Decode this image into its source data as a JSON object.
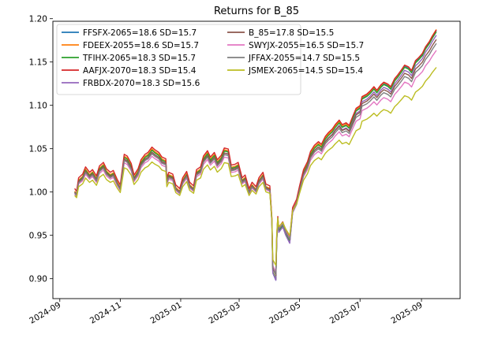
{
  "chart_data": {
    "type": "line",
    "title": "Returns for B_85",
    "xlabel": "",
    "ylabel": "",
    "x_range": [
      "2024-08-25",
      "2025-10-10"
    ],
    "ylim": [
      0.877,
      1.197
    ],
    "x_tick_labels": [
      "2024-09",
      "2024-11",
      "2025-01",
      "2025-03",
      "2025-05",
      "2025-07",
      "2025-09"
    ],
    "x_tick_dates": [
      "2024-09-01",
      "2024-11-01",
      "2025-01-01",
      "2025-03-01",
      "2025-05-01",
      "2025-07-01",
      "2025-09-01"
    ],
    "y_ticks": [
      0.9,
      0.95,
      1.0,
      1.05,
      1.1,
      1.15,
      1.2
    ],
    "y_tick_labels": [
      "0.90",
      "0.95",
      "1.00",
      "1.05",
      "1.10",
      "1.15",
      "1.20"
    ],
    "grid": false,
    "legend_position": "top-left",
    "dates": [
      "2024-09-16",
      "2024-09-18",
      "2024-09-20",
      "2024-09-24",
      "2024-09-27",
      "2024-10-01",
      "2024-10-04",
      "2024-10-08",
      "2024-10-11",
      "2024-10-15",
      "2024-10-18",
      "2024-10-22",
      "2024-10-25",
      "2024-10-29",
      "2024-11-01",
      "2024-11-05",
      "2024-11-08",
      "2024-11-12",
      "2024-11-15",
      "2024-11-19",
      "2024-11-22",
      "2024-11-26",
      "2024-11-29",
      "2024-12-03",
      "2024-12-06",
      "2024-12-10",
      "2024-12-13",
      "2024-12-17",
      "2024-12-18",
      "2024-12-20",
      "2024-12-24",
      "2024-12-27",
      "2024-12-31",
      "2025-01-03",
      "2025-01-07",
      "2025-01-10",
      "2025-01-14",
      "2025-01-17",
      "2025-01-21",
      "2025-01-24",
      "2025-01-28",
      "2025-01-31",
      "2025-02-04",
      "2025-02-07",
      "2025-02-11",
      "2025-02-14",
      "2025-02-18",
      "2025-02-21",
      "2025-02-25",
      "2025-02-28",
      "2025-03-04",
      "2025-03-07",
      "2025-03-11",
      "2025-03-14",
      "2025-03-18",
      "2025-03-21",
      "2025-03-25",
      "2025-03-28",
      "2025-04-01",
      "2025-04-03",
      "2025-04-04",
      "2025-04-07",
      "2025-04-08",
      "2025-04-09",
      "2025-04-10",
      "2025-04-14",
      "2025-04-17",
      "2025-04-21",
      "2025-04-24",
      "2025-04-28",
      "2025-05-01",
      "2025-05-05",
      "2025-05-09",
      "2025-05-12",
      "2025-05-16",
      "2025-05-20",
      "2025-05-23",
      "2025-05-27",
      "2025-05-30",
      "2025-06-03",
      "2025-06-06",
      "2025-06-10",
      "2025-06-13",
      "2025-06-17",
      "2025-06-20",
      "2025-06-24",
      "2025-06-27",
      "2025-07-01",
      "2025-07-03",
      "2025-07-08",
      "2025-07-11",
      "2025-07-15",
      "2025-07-18",
      "2025-07-22",
      "2025-07-25",
      "2025-07-29",
      "2025-08-01",
      "2025-08-05",
      "2025-08-08",
      "2025-08-12",
      "2025-08-15",
      "2025-08-19",
      "2025-08-22",
      "2025-08-26",
      "2025-08-29",
      "2025-09-02",
      "2025-09-05",
      "2025-09-09",
      "2025-09-12",
      "2025-09-16"
    ],
    "base": [
      1.0,
      0.997,
      1.012,
      1.016,
      1.024,
      1.018,
      1.021,
      1.014,
      1.025,
      1.029,
      1.022,
      1.018,
      1.02,
      1.01,
      1.004,
      1.038,
      1.036,
      1.028,
      1.015,
      1.022,
      1.032,
      1.038,
      1.04,
      1.046,
      1.043,
      1.04,
      1.035,
      1.033,
      1.012,
      1.018,
      1.016,
      1.004,
      1.0,
      1.012,
      1.019,
      1.007,
      1.003,
      1.021,
      1.024,
      1.036,
      1.042,
      1.035,
      1.04,
      1.032,
      1.037,
      1.045,
      1.044,
      1.026,
      1.027,
      1.029,
      1.012,
      1.015,
      1.0,
      1.007,
      1.002,
      1.012,
      1.018,
      1.005,
      1.003,
      0.968,
      0.912,
      0.904,
      0.948,
      0.969,
      0.957,
      0.963,
      0.954,
      0.945,
      0.979,
      0.988,
      1.003,
      1.021,
      1.03,
      1.041,
      1.048,
      1.052,
      1.049,
      1.058,
      1.062,
      1.066,
      1.071,
      1.076,
      1.071,
      1.073,
      1.07,
      1.081,
      1.089,
      1.092,
      1.102,
      1.105,
      1.108,
      1.113,
      1.109,
      1.115,
      1.118,
      1.116,
      1.113,
      1.122,
      1.126,
      1.132,
      1.137,
      1.135,
      1.131,
      1.142,
      1.145,
      1.15,
      1.157,
      1.163,
      1.169,
      1.176
    ],
    "series": [
      {
        "name": "FFSFX-2065=18.6 SD=15.7",
        "color": "#1f77b4",
        "scale": 1.06,
        "shift": 0.0
      },
      {
        "name": "FDEEX-2055=18.6 SD=15.7",
        "color": "#ff7f0e",
        "scale": 1.06,
        "shift": 0.001
      },
      {
        "name": "TFIHX-2065=18.3 SD=15.7",
        "color": "#2ca02c",
        "scale": 1.05,
        "shift": 0.0
      },
      {
        "name": "AAFJX-2070=18.3 SD=15.4",
        "color": "#d62728",
        "scale": 1.04,
        "shift": 0.004
      },
      {
        "name": "FRBDX-2070=18.3 SD=15.6",
        "color": "#9467bd",
        "scale": 1.04,
        "shift": -0.002
      },
      {
        "name": "B_85=17.8 SD=15.5",
        "color": "#8c564b",
        "scale": 1.0,
        "shift": 0.0
      },
      {
        "name": "SWYJX-2055=16.5 SD=15.7",
        "color": "#e377c2",
        "scale": 0.94,
        "shift": -0.002
      },
      {
        "name": "JFFAX-2055=14.7 SD=15.5",
        "color": "#7f7f7f",
        "scale": 0.98,
        "shift": -0.001
      },
      {
        "name": "JSMEX-2065=14.5 SD=15.4",
        "color": "#bcbd22",
        "scale": 0.84,
        "shift": -0.004
      }
    ]
  }
}
